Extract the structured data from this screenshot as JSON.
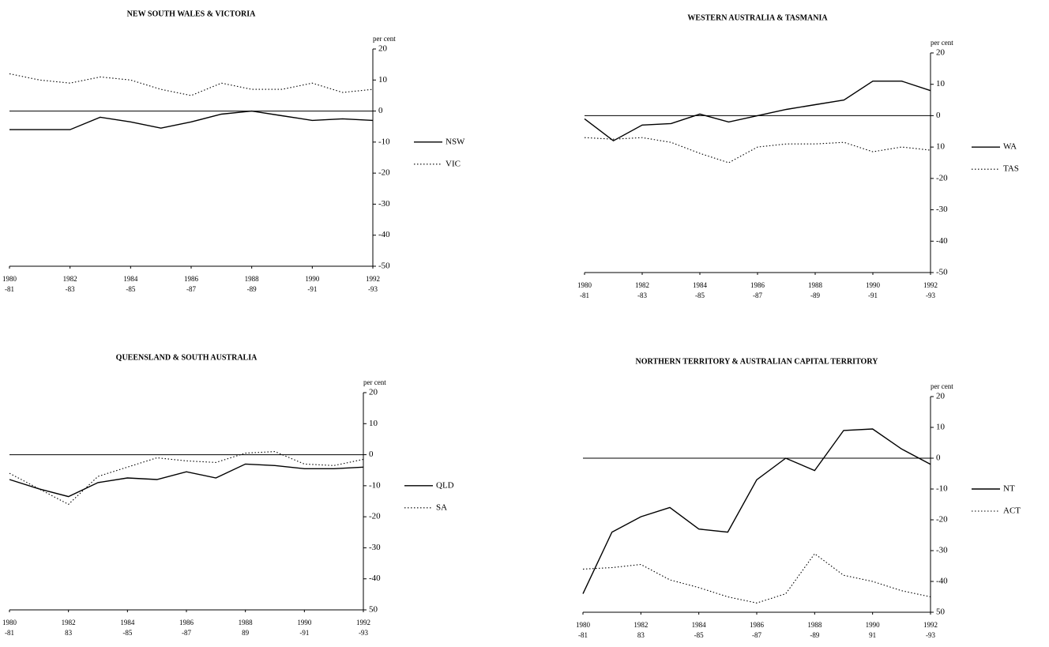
{
  "chart_data": [
    {
      "type": "line",
      "title": "NEW SOUTH WALES & VICTORIA",
      "y_label": "per cent",
      "categories": [
        [
          "1980",
          "-81"
        ],
        null,
        [
          "1982",
          "-83"
        ],
        null,
        [
          "1984",
          "-85"
        ],
        null,
        [
          "1986",
          "-87"
        ],
        null,
        [
          "1988",
          "-89"
        ],
        null,
        [
          "1990",
          "-91"
        ],
        null,
        [
          "1992",
          "-93"
        ]
      ],
      "series": [
        {
          "name": "NSW",
          "color": "#000000",
          "linestyle": "solid",
          "values": [
            -6,
            -6,
            -6,
            -2,
            -3.5,
            -5.5,
            -3.5,
            -1,
            0,
            -1.5,
            -3,
            -2.5,
            -3
          ]
        },
        {
          "name": "VIC",
          "color": "#000000",
          "linestyle": "dotted",
          "values": [
            12,
            10,
            9,
            11,
            10,
            7,
            5,
            9,
            7,
            7,
            9,
            6,
            7
          ]
        }
      ],
      "ylim": [
        -50,
        20
      ],
      "yticks": [
        20,
        10,
        0,
        -10,
        -20,
        -30,
        -40,
        -50
      ],
      "legend": "right"
    },
    {
      "type": "line",
      "title": "WESTERN AUSTRALIA & TASMANIA",
      "y_label": "per cent",
      "categories": [
        [
          "1980",
          "-81"
        ],
        null,
        [
          "1982",
          "-83"
        ],
        null,
        [
          "1984",
          "-85"
        ],
        null,
        [
          "1986",
          "-87"
        ],
        null,
        [
          "1988",
          "-89"
        ],
        null,
        [
          "1990",
          "-91"
        ],
        null,
        [
          "1992",
          "-93"
        ]
      ],
      "series": [
        {
          "name": "WA",
          "color": "#000000",
          "linestyle": "solid",
          "values": [
            -1,
            -8,
            -3,
            -2.5,
            0.5,
            -2,
            0,
            2,
            3.5,
            5,
            11,
            11,
            8
          ]
        },
        {
          "name": "TAS",
          "color": "#000000",
          "linestyle": "dotted",
          "values": [
            -7,
            -7.5,
            -7,
            -8.5,
            -12,
            -15,
            -10,
            -9,
            -9,
            -8.5,
            -11.5,
            -10,
            -11
          ]
        }
      ],
      "ylim": [
        -50,
        20
      ],
      "yticks": [
        20,
        10,
        0,
        {
          "value": -10,
          "label": "10"
        },
        -20,
        -30,
        -40,
        -50
      ],
      "legend": "right"
    },
    {
      "type": "line",
      "title": "QUEENSLAND & SOUTH AUSTRALIA",
      "y_label": "per cent",
      "categories": [
        [
          "1980",
          "-81"
        ],
        null,
        [
          "1982",
          "83"
        ],
        null,
        [
          "1984",
          "-85"
        ],
        null,
        [
          "1986",
          "-87"
        ],
        null,
        [
          "1988",
          "89"
        ],
        null,
        [
          "1990",
          "-91"
        ],
        null,
        [
          "1992",
          "-93"
        ]
      ],
      "series": [
        {
          "name": "QLD",
          "color": "#000000",
          "linestyle": "solid",
          "values": [
            -8,
            -11,
            -13.5,
            -9,
            -7.5,
            -8,
            -5.5,
            -7.5,
            -3,
            -3.5,
            -4.5,
            -4.5,
            -4
          ]
        },
        {
          "name": "SA",
          "color": "#000000",
          "linestyle": "dotted",
          "values": [
            -6,
            -11,
            -16,
            -7,
            -4,
            -1,
            -2,
            -2.5,
            0.5,
            1,
            -3,
            -3.5,
            -1.5
          ]
        }
      ],
      "ylim": [
        -50,
        20
      ],
      "yticks": [
        20,
        10,
        0,
        -10,
        -20,
        -30,
        -40,
        {
          "value": -50,
          "label": "50"
        }
      ],
      "legend": "right"
    },
    {
      "type": "line",
      "title": "NORTHERN TERRITORY & AUSTRALIAN CAPITAL TERRITORY",
      "y_label": "per cent",
      "categories": [
        [
          "1980",
          "-81"
        ],
        null,
        [
          "1982",
          "83"
        ],
        null,
        [
          "1984",
          "-85"
        ],
        null,
        [
          "1986",
          "-87"
        ],
        null,
        [
          "1988",
          "-89"
        ],
        null,
        [
          "1990",
          "91"
        ],
        null,
        [
          "1992",
          "-93"
        ]
      ],
      "series": [
        {
          "name": "NT",
          "color": "#000000",
          "linestyle": "solid",
          "values": [
            -44,
            -24,
            -19,
            -16,
            -23,
            -24,
            -7,
            0,
            -4,
            9,
            9.5,
            3,
            -2
          ]
        },
        {
          "name": "ACT",
          "color": "#000000",
          "linestyle": "dotted",
          "values": [
            -36,
            -35.5,
            -34.5,
            -39.5,
            -42,
            -45,
            -47,
            -44,
            -31,
            -38,
            -40,
            -43,
            -45
          ]
        }
      ],
      "ylim": [
        -50,
        20
      ],
      "yticks": [
        20,
        10,
        0,
        -10,
        -20,
        -30,
        -40,
        {
          "value": -50,
          "label": "50"
        }
      ],
      "legend": "right"
    }
  ]
}
